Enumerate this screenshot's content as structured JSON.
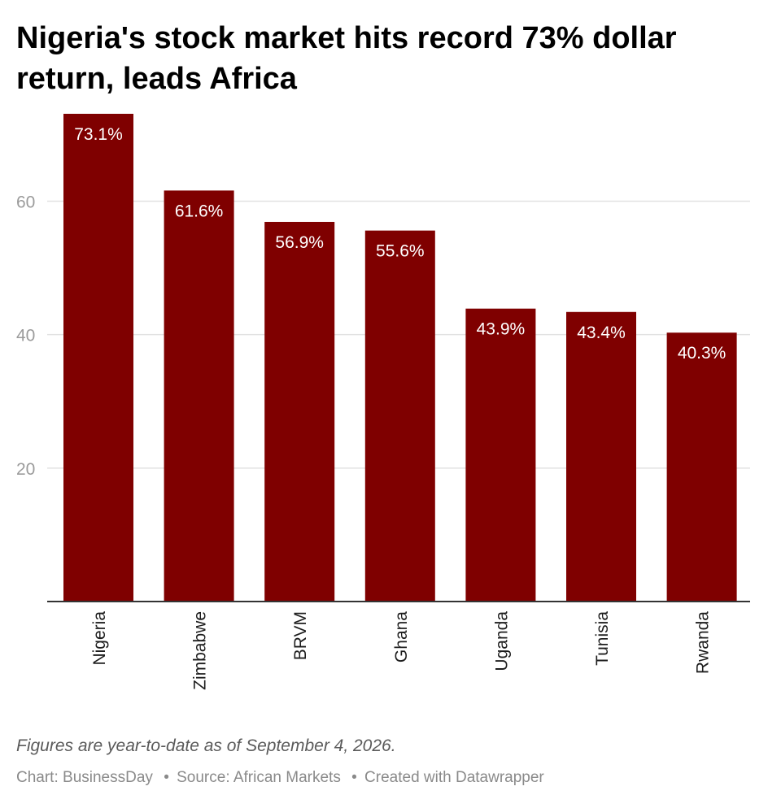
{
  "title": "Nigeria's stock market hits record 73% dollar return, leads Africa",
  "note": "Figures are year-to-date as of September 4, 2026.",
  "footer": {
    "chart_credit": "Chart: BusinessDay",
    "source": "Source: African Markets",
    "created_with": "Created with Datawrapper",
    "separator": "•"
  },
  "colors": {
    "bar": "#7f0000",
    "gridline": "#e2e2e2",
    "axis": "#333333",
    "tick_label": "#9b9b9b",
    "bar_label": "#ffffff"
  },
  "chart_data": {
    "type": "bar",
    "categories": [
      "Nigeria",
      "Zimbabwe",
      "BRVM",
      "Ghana",
      "Uganda",
      "Tunisia",
      "Rwanda"
    ],
    "values": [
      73.1,
      61.6,
      56.9,
      55.6,
      43.9,
      43.4,
      40.3
    ],
    "value_labels": [
      "73.1%",
      "61.6%",
      "56.9%",
      "55.6%",
      "43.9%",
      "43.4%",
      "40.3%"
    ],
    "ylim": [
      0,
      73.1
    ],
    "yticks": [
      20,
      40,
      60
    ],
    "ytick_labels": [
      "20",
      "40",
      "60"
    ],
    "grid": true,
    "xlabel": "",
    "ylabel": ""
  }
}
